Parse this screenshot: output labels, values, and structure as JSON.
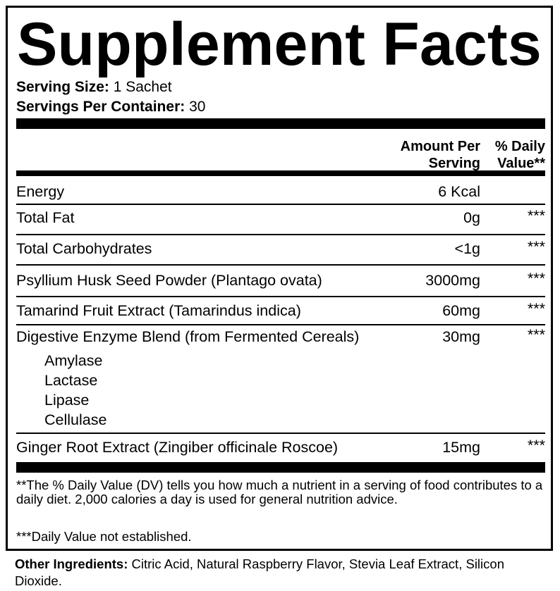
{
  "title": "Supplement Facts",
  "serving": {
    "size_label": "Serving Size:",
    "size_value": "1 Sachet",
    "per_container_label": "Servings Per Container:",
    "per_container_value": "30"
  },
  "header": {
    "amount_line1": "Amount Per",
    "amount_line2": "Serving",
    "dv_line1": "% Daily",
    "dv_line2": "Value**"
  },
  "rows": [
    {
      "name": "Energy",
      "amount": "6 Kcal",
      "dv": ""
    },
    {
      "name": "Total Fat",
      "amount": "0g",
      "dv": "***"
    },
    {
      "name": "Total Carbohydrates",
      "amount": "<1g",
      "dv": "***"
    },
    {
      "name": "Psyllium Husk Seed Powder (Plantago ovata)",
      "amount": "3000mg",
      "dv": "***"
    },
    {
      "name": "Tamarind Fruit Extract (Tamarindus indica)",
      "amount": "60mg",
      "dv": "***"
    },
    {
      "name": "Digestive Enzyme Blend (from Fermented Cereals)",
      "amount": "30mg",
      "dv": "***",
      "sub_items": [
        "Amylase",
        "Lactase",
        "Lipase",
        "Cellulase"
      ]
    },
    {
      "name": "Ginger Root Extract (Zingiber officinale Roscoe)",
      "amount": "15mg",
      "dv": "***"
    }
  ],
  "footnotes": {
    "dv_note": "**The % Daily Value (DV) tells you how much a nutrient in a serving of food contributes to a daily diet. 2,000 calories a day is used for general nutrition advice.",
    "not_established": "***Daily Value not established."
  },
  "other_ingredients": {
    "label": "Other Ingredients:",
    "value": "Citric Acid, Natural Raspberry Flavor, Stevia Leaf Extract, Silicon Dioxide."
  }
}
